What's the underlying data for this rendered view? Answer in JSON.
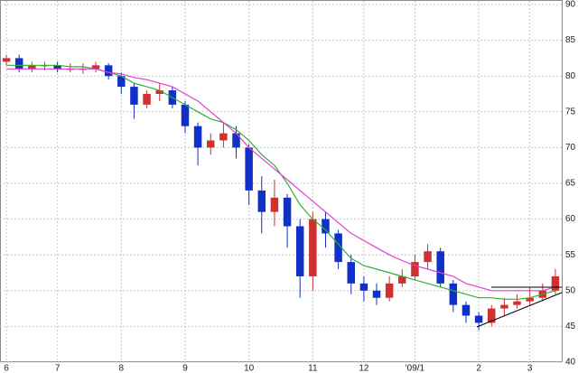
{
  "chart_data": {
    "type": "candlestick",
    "categories": [
      "6",
      null,
      null,
      null,
      "7",
      null,
      null,
      null,
      null,
      "8",
      null,
      null,
      null,
      null,
      "9",
      null,
      null,
      null,
      null,
      "10",
      null,
      null,
      null,
      null,
      "11",
      null,
      null,
      null,
      "12",
      null,
      null,
      null,
      "'09/1",
      null,
      null,
      null,
      null,
      "2",
      null,
      null,
      null,
      "3",
      null,
      null
    ],
    "open": [
      82,
      82.5,
      81,
      81.5,
      81.5,
      81,
      81,
      81,
      81.5,
      80,
      78.5,
      76,
      77.5,
      78,
      76,
      73,
      70,
      71,
      72,
      70,
      64,
      61,
      63,
      59,
      52,
      60,
      58,
      54,
      51,
      50,
      49,
      51,
      52,
      54,
      55.5,
      51,
      48,
      46.5,
      45.5,
      47.5,
      48,
      48.5,
      49,
      50
    ],
    "high": [
      83,
      83,
      82,
      82,
      82,
      81.8,
      81.8,
      82,
      81.8,
      80.5,
      79,
      78,
      79,
      78.5,
      76.5,
      73.5,
      72,
      73.5,
      73,
      70.5,
      66,
      65.5,
      63.5,
      60,
      61,
      61,
      58.5,
      55,
      52,
      51,
      52,
      53,
      55,
      56.5,
      56,
      51.5,
      48.5,
      47,
      48,
      49,
      49.5,
      50.5,
      51,
      53
    ],
    "low": [
      81.5,
      80.5,
      80.5,
      80.8,
      80.5,
      80.5,
      80.3,
      80.5,
      79.5,
      77.5,
      74,
      75.5,
      76.5,
      75.5,
      72,
      67.5,
      69,
      70,
      68.5,
      62,
      58,
      59,
      56,
      49,
      50,
      56,
      53,
      49.5,
      48.5,
      48,
      48.5,
      50.5,
      51.5,
      53,
      50.5,
      47,
      45.5,
      44.5,
      45,
      46.5,
      47.5,
      48,
      48.5,
      49.5
    ],
    "close": [
      82.5,
      81,
      81.5,
      81.5,
      81,
      81,
      81,
      81.5,
      80,
      78.5,
      76,
      77.5,
      78,
      76,
      73,
      70,
      71,
      72,
      70,
      64,
      61,
      63,
      59,
      52,
      60,
      58,
      54,
      51,
      50,
      49,
      51,
      52,
      54,
      55.5,
      51,
      48,
      46.5,
      45.5,
      47.5,
      48,
      48.5,
      49,
      50,
      52
    ],
    "up_color": "#d03030",
    "down_color": "#1030c8",
    "lines": [
      {
        "color": "#30b030",
        "values": [
          81.5,
          81.5,
          81.5,
          81.5,
          81.5,
          81.3,
          81.3,
          81,
          80.5,
          80,
          79,
          78.5,
          78,
          77,
          76,
          75,
          74,
          73.5,
          72.5,
          71,
          69,
          67.5,
          65,
          62,
          60,
          58.5,
          56.5,
          54.5,
          53.5,
          53,
          52.5,
          52,
          51.5,
          51,
          50.5,
          50,
          49.5,
          49,
          49,
          48.8,
          48.8,
          49,
          49.5,
          50
        ]
      },
      {
        "color": "#e040d0",
        "values": [
          81,
          81,
          81,
          81,
          81,
          81,
          81,
          81,
          80.5,
          80.3,
          79.8,
          79.5,
          79,
          78.5,
          77.5,
          76.5,
          75,
          73.5,
          72,
          70,
          68.5,
          67,
          65.5,
          64,
          62.5,
          61,
          59.5,
          58,
          57,
          56,
          55,
          54.2,
          53.5,
          53,
          52.5,
          52,
          51,
          50.5,
          50,
          50,
          50,
          50,
          50,
          50.5
        ]
      }
    ],
    "ylim": [
      40,
      90
    ],
    "yticks": [
      40,
      45,
      50,
      55,
      60,
      65,
      70,
      75,
      80,
      85,
      90
    ],
    "grid": true
  }
}
